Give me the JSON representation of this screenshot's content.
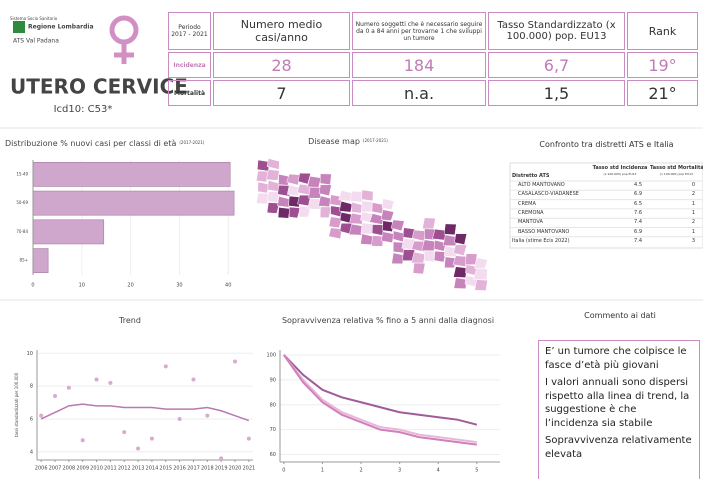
{
  "logo": {
    "line1": "Sistema Socio Sanitario",
    "line2": "Regione Lombardia",
    "line3": "ATS Val Padana"
  },
  "title": "UTERO CERVICE",
  "subtitle": "Icd10: C53*",
  "summary_table": {
    "columns": [
      "Periodo 2017 - 2021",
      "Numero medio casi/anno",
      "Numero soggetti che è necessario seguire da 0 a 84 anni per trovarne 1 che sviluppi un tumore",
      "Tasso Standardizzato (x 100.000) pop. EU13",
      "Rank"
    ],
    "rows": [
      [
        "Incidenza",
        "28",
        "184",
        "6,7",
        "19°"
      ],
      [
        "Mortalità",
        "7",
        "n.a.",
        "1,5",
        "21°"
      ]
    ]
  },
  "chart_data": [
    {
      "type": "hbar",
      "title": "Distribuzione % nuovi casi per classi di età",
      "subtitle": "(2017-2021)",
      "categories": [
        "15-49",
        "50-69",
        "70-84",
        "85+"
      ],
      "values": [
        40.4,
        41.2,
        14.5,
        3.1
      ],
      "color": "#cfa6cc",
      "xlim": [
        0,
        42
      ],
      "xticks": [
        0,
        10,
        20,
        30,
        40
      ],
      "grid": true
    },
    {
      "type": "map",
      "title": "Disease map",
      "subtitle": "(2017-2021)"
    },
    {
      "type": "scatter",
      "title": "Trend",
      "ylabel": "tassi standardizzati per 100.000",
      "x": [
        2006,
        2007,
        2008,
        2009,
        2010,
        2011,
        2012,
        2013,
        2014,
        2015,
        2016,
        2017,
        2018,
        2019,
        2020,
        2021
      ],
      "series": [
        {
          "kind": "points",
          "color": "#d9a9cf",
          "values": [
            6.2,
            7.4,
            7.9,
            4.7,
            8.4,
            8.2,
            5.2,
            4.2,
            4.8,
            9.2,
            6.0,
            8.4,
            6.2,
            3.6,
            9.5,
            4.8
          ]
        },
        {
          "kind": "line",
          "color": "#b77ab0",
          "values": [
            6.0,
            6.4,
            6.8,
            6.9,
            6.8,
            6.8,
            6.7,
            6.7,
            6.7,
            6.6,
            6.6,
            6.6,
            6.7,
            6.5,
            6.2,
            5.9
          ]
        }
      ],
      "xlim": [
        2005.7,
        2021.3
      ],
      "xticks": [
        2006,
        2007,
        2008,
        2009,
        2010,
        2011,
        2012,
        2013,
        2014,
        2015,
        2016,
        2017,
        2018,
        2019,
        2020,
        2021
      ],
      "ylim": [
        3.5,
        10.2
      ],
      "yticks": [
        4,
        6,
        8,
        10
      ],
      "grid": true
    },
    {
      "type": "line",
      "title": "Sopravvivenza relativa % fino a 5 anni dalla diagnosi",
      "x": [
        0,
        0.5,
        1,
        1.5,
        2,
        2.5,
        3,
        3.5,
        4,
        4.5,
        5
      ],
      "series": [
        {
          "color": "#a05c98",
          "values": [
            100,
            92,
            86,
            83,
            81,
            79,
            77,
            76,
            75,
            74,
            72
          ]
        },
        {
          "color": "#e8b7d8",
          "values": [
            100,
            90,
            82,
            77,
            74,
            71,
            70,
            68,
            67,
            66,
            65
          ]
        },
        {
          "color": "#d07fba",
          "values": [
            100,
            89,
            81,
            76,
            73,
            70,
            69,
            67,
            66,
            65,
            64
          ]
        }
      ],
      "xlim": [
        -0.1,
        5.6
      ],
      "xticks": [
        0,
        1,
        2,
        3,
        4,
        5
      ],
      "ylim": [
        57,
        102
      ],
      "yticks": [
        60,
        70,
        80,
        90,
        100
      ],
      "grid": true
    }
  ],
  "district_table": {
    "title": "Confronto tra distretti ATS e Italia",
    "columns": [
      "Distretto ATS",
      "Tasso std Incidenza",
      "Tasso std Mortalità"
    ],
    "column_notes": [
      "(x 100.000) pop EU13",
      "(x 100.000) pop EU13"
    ],
    "rows": [
      [
        "ALTO MANTOVANO",
        "4.5",
        "0"
      ],
      [
        "CASALASCO-VIADANESE",
        "6.9",
        "2"
      ],
      [
        "CREMA",
        "6.5",
        "1"
      ],
      [
        "CREMONA",
        "7.6",
        "1"
      ],
      [
        "MANTOVA",
        "7.4",
        "2"
      ],
      [
        "BASSO MANTOVANO",
        "6.9",
        "1"
      ],
      [
        "Italia (stime Ecis 2022)",
        "7.4",
        "3"
      ]
    ]
  },
  "comment": {
    "title": "Commento ai dati",
    "paragraphs": [
      "E’ un tumore che colpisce le fasce d’età più giovani",
      "I valori annuali sono dispersi rispetto alla linea di trend, la suggestione è che l’incidenza sia stabile",
      "Sopravvivenza relativamente elevata"
    ]
  }
}
